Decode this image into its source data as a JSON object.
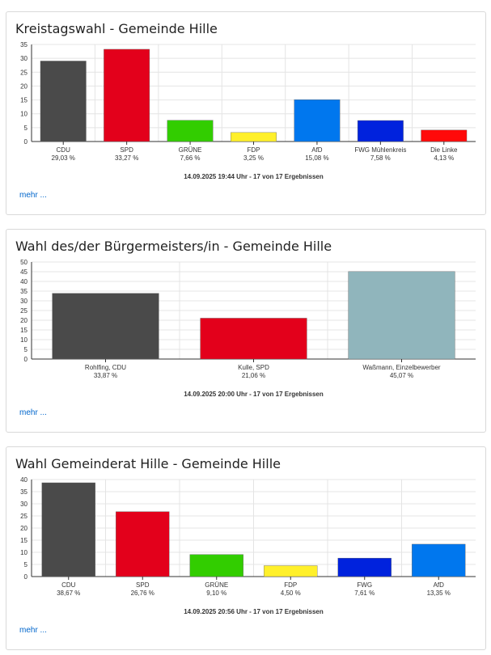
{
  "colors": {
    "CDU": "#4a4a4a",
    "SPD": "#e3001b",
    "GRUENE": "#32cd00",
    "FDP": "#fff02b",
    "AfD": "#0077ee",
    "FWG": "#0022dd",
    "Linke": "#ff0a0a",
    "Einzel": "#90b5bc",
    "grid": "#e4e4e4",
    "axis": "#333333",
    "link": "#0066cc"
  },
  "panels": [
    {
      "title": "Kreistagswahl - Gemeinde Hille",
      "timestamp": "14.09.2025 19:44 Uhr - 17 von 17 Ergebnissen",
      "more_label": "mehr ...",
      "chart_data": {
        "type": "bar",
        "categories": [
          "CDU",
          "SPD",
          "GRÜNE",
          "FDP",
          "AfD",
          "FWG Mühlenkreis",
          "Die Linke"
        ],
        "value_labels": [
          "29,03 %",
          "33,27 %",
          "7,66 %",
          "3,25 %",
          "15,08 %",
          "7,58 %",
          "4,13 %"
        ],
        "values": [
          29.03,
          33.27,
          7.66,
          3.25,
          15.08,
          7.58,
          4.13
        ],
        "colors": [
          "#4a4a4a",
          "#e3001b",
          "#32cd00",
          "#fff02b",
          "#0077ee",
          "#0022dd",
          "#ff0a0a"
        ],
        "ylim": [
          0,
          35
        ],
        "yticks": [
          "0",
          "5",
          "10",
          "15",
          "20",
          "25",
          "30",
          "35"
        ],
        "grid": true
      }
    },
    {
      "title": "Wahl des/der Bürgermeisters/in - Gemeinde Hille",
      "timestamp": "14.09.2025 20:00 Uhr - 17 von 17 Ergebnissen",
      "more_label": "mehr ...",
      "chart_data": {
        "type": "bar",
        "categories": [
          "Rohlfing, CDU",
          "Kulle, SPD",
          "Waßmann, Einzelbewerber"
        ],
        "value_labels": [
          "33,87 %",
          "21,06 %",
          "45,07 %"
        ],
        "values": [
          33.87,
          21.06,
          45.07
        ],
        "colors": [
          "#4a4a4a",
          "#e3001b",
          "#90b5bc"
        ],
        "ylim": [
          0,
          50
        ],
        "yticks": [
          "0",
          "5",
          "10",
          "15",
          "20",
          "25",
          "30",
          "35",
          "40",
          "45",
          "50"
        ],
        "grid": true
      }
    },
    {
      "title": "Wahl Gemeinderat Hille - Gemeinde Hille",
      "timestamp": "14.09.2025 20:56 Uhr - 17 von 17 Ergebnissen",
      "more_label": "mehr ...",
      "chart_data": {
        "type": "bar",
        "categories": [
          "CDU",
          "SPD",
          "GRÜNE",
          "FDP",
          "FWG",
          "AfD"
        ],
        "value_labels": [
          "38,67 %",
          "26,76 %",
          "9,10 %",
          "4,50 %",
          "7,61 %",
          "13,35 %"
        ],
        "values": [
          38.67,
          26.76,
          9.1,
          4.5,
          7.61,
          13.35
        ],
        "colors": [
          "#4a4a4a",
          "#e3001b",
          "#32cd00",
          "#fff02b",
          "#0022dd",
          "#0077ee"
        ],
        "ylim": [
          0,
          40
        ],
        "yticks": [
          "0",
          "5",
          "10",
          "15",
          "20",
          "25",
          "30",
          "35",
          "40"
        ],
        "grid": true
      }
    }
  ]
}
